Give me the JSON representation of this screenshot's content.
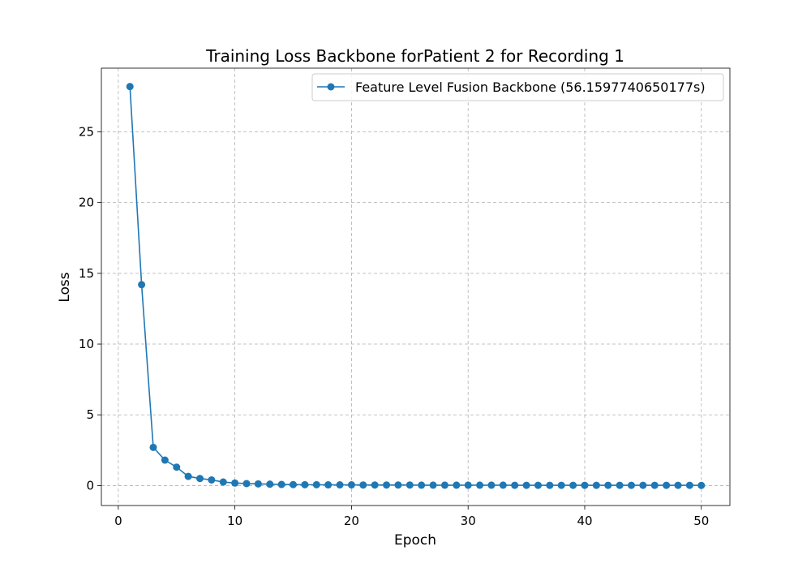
{
  "chart_data": {
    "type": "line",
    "title": "Training Loss Backbone forPatient 2 for Recording 1",
    "xlabel": "Epoch",
    "ylabel": "Loss",
    "xlim": [
      -1.45,
      52.45
    ],
    "ylim": [
      -1.41,
      29.5
    ],
    "xticks": [
      0,
      10,
      20,
      30,
      40,
      50
    ],
    "yticks": [
      0,
      5,
      10,
      15,
      20,
      25
    ],
    "grid": true,
    "legend_position": "upper right",
    "series": [
      {
        "name": "Feature Level Fusion Backbone (56.1597740650177s)",
        "color": "#1f77b4",
        "marker": "circle",
        "x": [
          1,
          2,
          3,
          4,
          5,
          6,
          7,
          8,
          9,
          10,
          11,
          12,
          13,
          14,
          15,
          16,
          17,
          18,
          19,
          20,
          21,
          22,
          23,
          24,
          25,
          26,
          27,
          28,
          29,
          30,
          31,
          32,
          33,
          34,
          35,
          36,
          37,
          38,
          39,
          40,
          41,
          42,
          43,
          44,
          45,
          46,
          47,
          48,
          49,
          50
        ],
        "values": [
          28.2,
          14.2,
          2.7,
          1.8,
          1.3,
          0.65,
          0.5,
          0.4,
          0.25,
          0.18,
          0.14,
          0.12,
          0.1,
          0.08,
          0.07,
          0.06,
          0.06,
          0.05,
          0.05,
          0.05,
          0.04,
          0.04,
          0.04,
          0.04,
          0.04,
          0.03,
          0.03,
          0.03,
          0.03,
          0.03,
          0.03,
          0.03,
          0.03,
          0.02,
          0.02,
          0.02,
          0.02,
          0.02,
          0.02,
          0.02,
          0.02,
          0.02,
          0.02,
          0.02,
          0.02,
          0.02,
          0.02,
          0.02,
          0.02,
          0.01
        ]
      }
    ]
  }
}
